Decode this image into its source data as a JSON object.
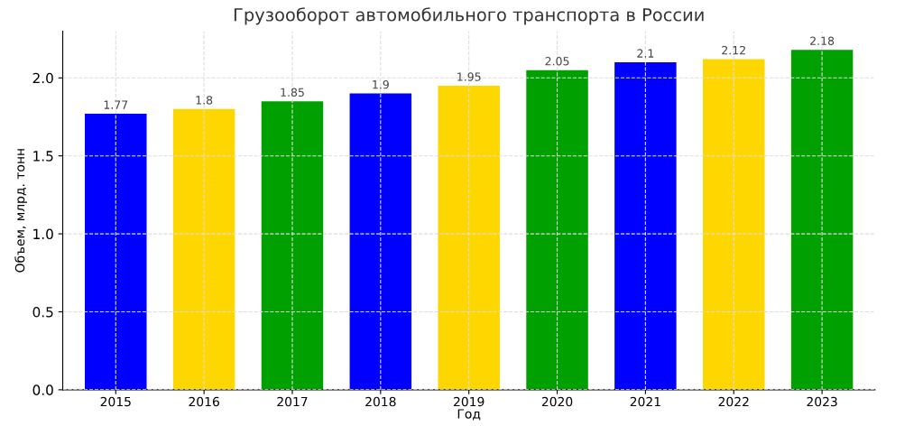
{
  "chart_data": {
    "type": "bar",
    "title": "Грузооборот автомобильного транспорта в России",
    "xlabel": "Год",
    "ylabel": "Объем, млрд. тонн",
    "categories": [
      "2015",
      "2016",
      "2017",
      "2018",
      "2019",
      "2020",
      "2021",
      "2022",
      "2023"
    ],
    "values": [
      1.77,
      1.8,
      1.85,
      1.9,
      1.95,
      2.05,
      2.1,
      2.12,
      2.18
    ],
    "colors": [
      "#0000ff",
      "#ffd700",
      "#00a000",
      "#0000ff",
      "#ffd700",
      "#00a000",
      "#0000ff",
      "#ffd700",
      "#00a000"
    ],
    "ylim": [
      0,
      2.3
    ],
    "yticks": [
      {
        "value": 0,
        "label": "0.0"
      },
      {
        "value": 0.5,
        "label": "0.5"
      },
      {
        "value": 1.0,
        "label": "1.0"
      },
      {
        "value": 1.5,
        "label": "1.5"
      },
      {
        "value": 2.0,
        "label": "2.0"
      }
    ],
    "grid": true,
    "data_labels": true
  }
}
